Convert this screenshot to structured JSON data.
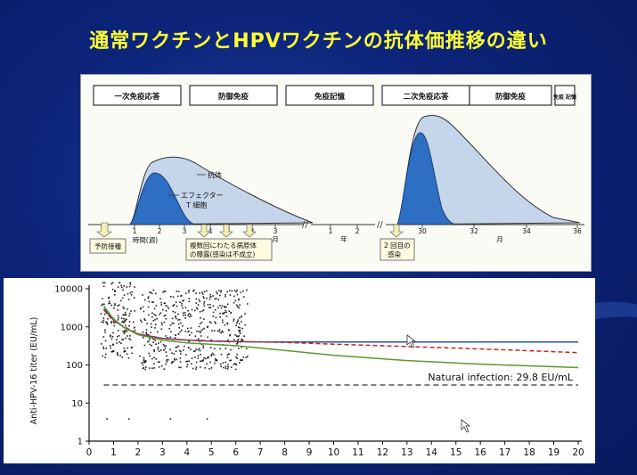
{
  "slide": {
    "title": "通常ワクチンとHPVワクチンの抗体価推移の違い"
  },
  "top_diagram": {
    "phases": [
      "一次免疫応答",
      "防御免疫",
      "免疫記憶",
      "二次免疫応答",
      "防御免疫",
      "免疫 記憶"
    ],
    "curve_labels": {
      "antibody": "抗体",
      "effector": "エフェクター T 細胞"
    },
    "x_segments": [
      {
        "unit": "時間(週)",
        "ticks": [
          "1",
          "2",
          "3",
          "4"
        ]
      },
      {
        "unit": "月",
        "ticks": [
          "1",
          "2",
          "3"
        ]
      },
      {
        "unit": "年",
        "ticks": [
          "1",
          "2"
        ]
      },
      {
        "unit": "月",
        "ticks": [
          "30",
          "32",
          "34",
          "36"
        ]
      }
    ],
    "callouts": {
      "vaccination": "予防接種",
      "exposure_line1": "複数回にわたる病原体",
      "exposure_line2": "の曝露(感染は不成立)",
      "second_infection_line1": "2 回目の",
      "second_infection_line2": "感染"
    },
    "colors": {
      "antibody_fill": "#c5d5ea",
      "effector_fill": "#2e6fc4",
      "frame": "#333333"
    }
  },
  "chart_data": {
    "type": "line",
    "ylabel": "Anti-HPV-16 titer (EU/mL)",
    "xlim": [
      0,
      20
    ],
    "x_ticks": [
      0,
      1,
      2,
      3,
      4,
      5,
      6,
      7,
      8,
      9,
      10,
      11,
      12,
      13,
      14,
      15,
      16,
      17,
      18,
      19,
      20
    ],
    "y_scale": "log",
    "ylim": [
      1,
      10000
    ],
    "y_tick_labels": [
      "10000",
      "1000",
      "100",
      "10",
      "1"
    ],
    "y_tick_values": [
      10000,
      1000,
      100,
      10,
      1
    ],
    "series": [
      {
        "style": "solid",
        "color": "#2a4fa8",
        "points": [
          [
            0.6,
            3000
          ],
          [
            1,
            1500
          ],
          [
            1.5,
            900
          ],
          [
            2,
            650
          ],
          [
            3,
            500
          ],
          [
            4,
            450
          ],
          [
            5,
            420
          ],
          [
            6,
            410
          ],
          [
            7,
            400
          ],
          [
            10,
            400
          ],
          [
            15,
            400
          ],
          [
            20,
            400
          ]
        ]
      },
      {
        "style": "dashed",
        "color": "#cc2222",
        "points": [
          [
            0.6,
            2800
          ],
          [
            1,
            1400
          ],
          [
            2,
            650
          ],
          [
            3,
            500
          ],
          [
            4,
            450
          ],
          [
            6,
            410
          ],
          [
            8,
            390
          ],
          [
            10,
            350
          ],
          [
            14,
            290
          ],
          [
            17,
            250
          ],
          [
            20,
            210
          ]
        ]
      },
      {
        "style": "solid",
        "color": "#5a9a2e",
        "points": [
          [
            0.6,
            3500
          ],
          [
            1,
            1600
          ],
          [
            1.5,
            900
          ],
          [
            2,
            620
          ],
          [
            3,
            450
          ],
          [
            4,
            380
          ],
          [
            6,
            320
          ],
          [
            8,
            240
          ],
          [
            10,
            180
          ],
          [
            13,
            130
          ],
          [
            16,
            105
          ],
          [
            20,
            85
          ]
        ]
      }
    ],
    "reference_line": {
      "value": 29.8,
      "label": "Natural infection: 29.8 EU/mL",
      "style": "dashed",
      "color": "#333333"
    },
    "scatter_columns": [
      0.7,
      1.2,
      1.6,
      2.3,
      2.8,
      3.3,
      3.8,
      4.3,
      4.8,
      5.3,
      5.8,
      6.2
    ]
  }
}
